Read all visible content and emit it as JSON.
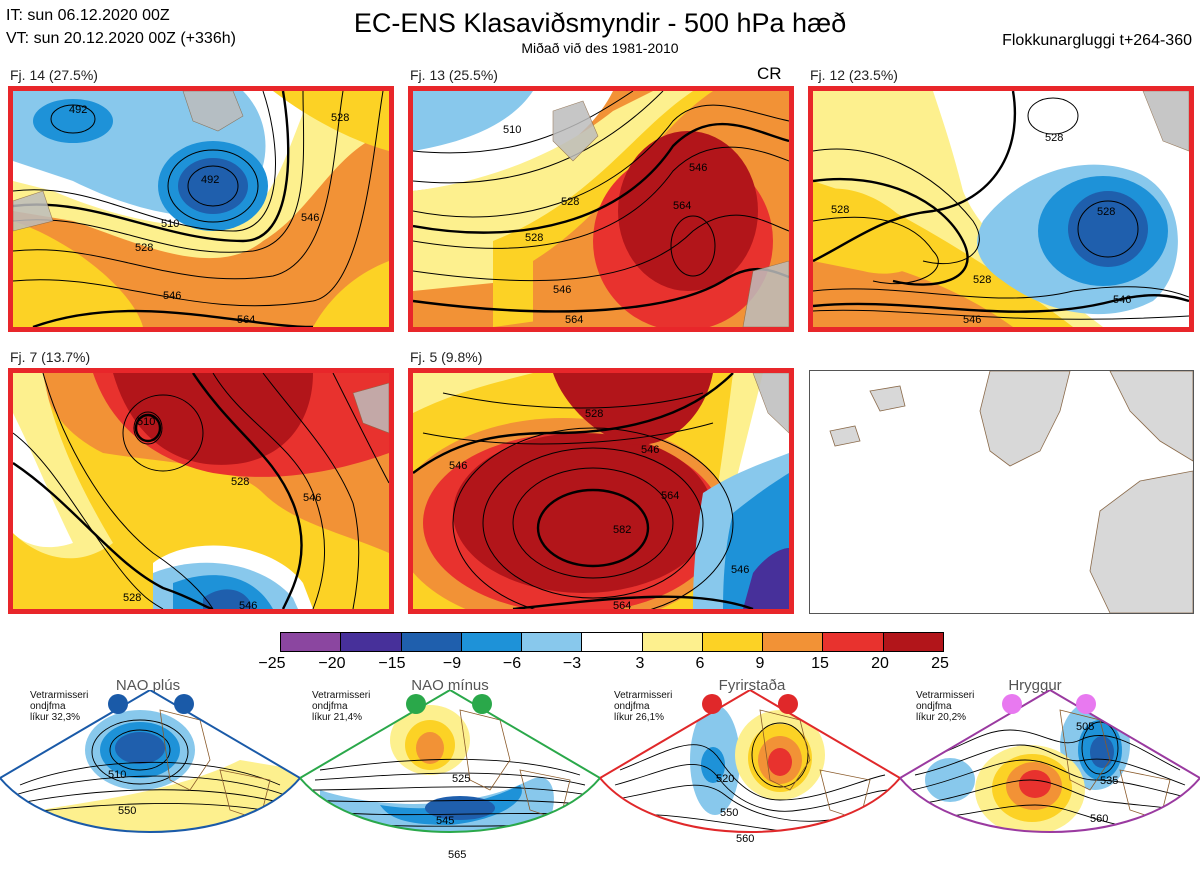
{
  "header": {
    "it_line": "IT: sun 06.12.2020 00Z",
    "vt_line": "VT: sun 20.12.2020 00Z  (+336h)",
    "title": "EC-ENS Klasaviðsmyndir - 500 hPa hæð",
    "subtitle": "Miðað við des 1981-2010",
    "window": "Flokkunargluggi t+264-360"
  },
  "clusters": [
    {
      "label": "Fj. 14 (27.5%)",
      "tag": "",
      "contours": [
        "492",
        "492",
        "510",
        "528",
        "528",
        "546",
        "546",
        "564"
      ]
    },
    {
      "label": "Fj. 13 (25.5%)",
      "tag": "CR",
      "contours": [
        "510",
        "528",
        "528",
        "546",
        "564",
        "546",
        "564"
      ]
    },
    {
      "label": "Fj. 12 (23.5%)",
      "tag": "",
      "contours": [
        "528",
        "528",
        "528",
        "528",
        "546",
        "546"
      ]
    },
    {
      "label": "Fj. 7 (13.7%)",
      "tag": "",
      "contours": [
        "510",
        "528",
        "546",
        "546",
        "528"
      ]
    },
    {
      "label": "Fj. 5 (9.8%)",
      "tag": "",
      "contours": [
        "528",
        "546",
        "546",
        "564",
        "582",
        "564",
        "546"
      ]
    }
  ],
  "colorbar": {
    "colors": [
      "#8b46a0",
      "#47309a",
      "#1f5fad",
      "#1e92d8",
      "#88c8ec",
      "#ffffff",
      "#fdf08e",
      "#fcd225",
      "#f29236",
      "#e8322e",
      "#b2151a"
    ],
    "ticks": [
      "−25",
      "−20",
      "−15",
      "−9",
      "−6",
      "−3",
      "3",
      "6",
      "9",
      "15",
      "20",
      "25"
    ]
  },
  "regimes": [
    {
      "name": "NAO plús",
      "stat_line1": "Vetrarmisseri",
      "stat_line2": "ondjfma",
      "stat_line3": "líkur 32,3%",
      "color": "#1a5aa8",
      "contours": [
        "510",
        "550"
      ]
    },
    {
      "name": "NAO mínus",
      "stat_line1": "Vetrarmisseri",
      "stat_line2": "ondjfma",
      "stat_line3": "líkur 21,4%",
      "color": "#2aa84a",
      "contours": [
        "525",
        "545",
        "565"
      ]
    },
    {
      "name": "Fyrirstaða",
      "stat_line1": "Vetrarmisseri",
      "stat_line2": "ondjfma",
      "stat_line3": "líkur 26,1%",
      "color": "#e0282a",
      "contours": [
        "520",
        "550",
        "560"
      ]
    },
    {
      "name": "Hryggur",
      "stat_line1": "Vetrarmisseri",
      "stat_line2": "ondjfma",
      "stat_line3": "líkur 20,2%",
      "color": "#9a3aa0",
      "contours": [
        "505",
        "535",
        "560"
      ]
    }
  ]
}
